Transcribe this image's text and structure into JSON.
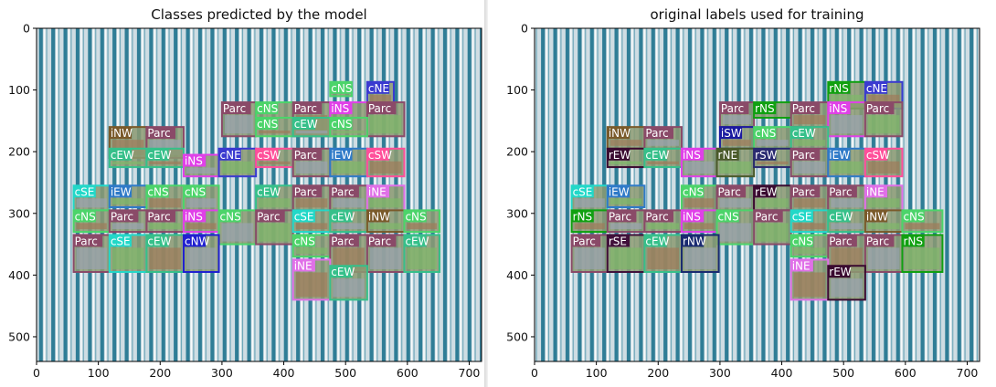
{
  "chart_data": [
    {
      "type": "image-annotation",
      "title": "Classes predicted by the model",
      "xlim": [
        0,
        720
      ],
      "ylim": [
        540,
        0
      ],
      "xticks": [
        0,
        100,
        200,
        300,
        400,
        500,
        600,
        700
      ],
      "yticks": [
        0,
        100,
        200,
        300,
        400,
        500
      ],
      "boxes": [
        {
          "label": "cNS",
          "x0": 475,
          "y0": 87,
          "x1": 510,
          "y1": 110
        },
        {
          "label": "cNE",
          "x0": 535,
          "y0": 87,
          "x1": 578,
          "y1": 130
        },
        {
          "label": "Parc",
          "x0": 300,
          "y0": 120,
          "x1": 355,
          "y1": 175
        },
        {
          "label": "cNS",
          "x0": 355,
          "y0": 120,
          "x1": 415,
          "y1": 145
        },
        {
          "label": "Parc",
          "x0": 415,
          "y0": 120,
          "x1": 475,
          "y1": 175
        },
        {
          "label": "iNS",
          "x0": 475,
          "y0": 120,
          "x1": 535,
          "y1": 145
        },
        {
          "label": "Parc",
          "x0": 535,
          "y0": 120,
          "x1": 595,
          "y1": 175
        },
        {
          "label": "cNS",
          "x0": 355,
          "y0": 145,
          "x1": 415,
          "y1": 175
        },
        {
          "label": "cEW",
          "x0": 415,
          "y0": 145,
          "x1": 475,
          "y1": 175
        },
        {
          "label": "cNS",
          "x0": 475,
          "y0": 145,
          "x1": 535,
          "y1": 175
        },
        {
          "label": "iNW",
          "x0": 118,
          "y0": 160,
          "x1": 178,
          "y1": 210
        },
        {
          "label": "Parc",
          "x0": 178,
          "y0": 160,
          "x1": 238,
          "y1": 210
        },
        {
          "label": "cEW",
          "x0": 118,
          "y0": 195,
          "x1": 178,
          "y1": 225
        },
        {
          "label": "cEW",
          "x0": 178,
          "y0": 195,
          "x1": 238,
          "y1": 225
        },
        {
          "label": "iNS",
          "x0": 238,
          "y0": 205,
          "x1": 295,
          "y1": 240
        },
        {
          "label": "cNE",
          "x0": 295,
          "y0": 195,
          "x1": 355,
          "y1": 240
        },
        {
          "label": "cSW",
          "x0": 355,
          "y0": 195,
          "x1": 415,
          "y1": 225
        },
        {
          "label": "Parc",
          "x0": 415,
          "y0": 195,
          "x1": 475,
          "y1": 240
        },
        {
          "label": "iEW",
          "x0": 475,
          "y0": 195,
          "x1": 535,
          "y1": 240
        },
        {
          "label": "cSW",
          "x0": 535,
          "y0": 195,
          "x1": 595,
          "y1": 240
        },
        {
          "label": "cSE",
          "x0": 60,
          "y0": 255,
          "x1": 118,
          "y1": 295
        },
        {
          "label": "iEW",
          "x0": 118,
          "y0": 255,
          "x1": 178,
          "y1": 290
        },
        {
          "label": "cNS",
          "x0": 178,
          "y0": 255,
          "x1": 238,
          "y1": 295
        },
        {
          "label": "cNS",
          "x0": 238,
          "y0": 255,
          "x1": 295,
          "y1": 295
        },
        {
          "label": "cEW",
          "x0": 355,
          "y0": 255,
          "x1": 415,
          "y1": 295
        },
        {
          "label": "Parc",
          "x0": 415,
          "y0": 255,
          "x1": 475,
          "y1": 295
        },
        {
          "label": "Parc",
          "x0": 475,
          "y0": 255,
          "x1": 535,
          "y1": 295
        },
        {
          "label": "iNE",
          "x0": 535,
          "y0": 255,
          "x1": 595,
          "y1": 295
        },
        {
          "label": "cNS",
          "x0": 60,
          "y0": 295,
          "x1": 118,
          "y1": 330
        },
        {
          "label": "Parc",
          "x0": 118,
          "y0": 295,
          "x1": 178,
          "y1": 330
        },
        {
          "label": "Parc",
          "x0": 178,
          "y0": 295,
          "x1": 238,
          "y1": 330
        },
        {
          "label": "iNS",
          "x0": 238,
          "y0": 295,
          "x1": 295,
          "y1": 330
        },
        {
          "label": "cNS",
          "x0": 295,
          "y0": 295,
          "x1": 355,
          "y1": 350
        },
        {
          "label": "Parc",
          "x0": 355,
          "y0": 295,
          "x1": 415,
          "y1": 350
        },
        {
          "label": "cSE",
          "x0": 415,
          "y0": 295,
          "x1": 475,
          "y1": 330
        },
        {
          "label": "cEW",
          "x0": 475,
          "y0": 295,
          "x1": 535,
          "y1": 330
        },
        {
          "label": "iNW",
          "x0": 535,
          "y0": 295,
          "x1": 595,
          "y1": 330
        },
        {
          "label": "cNS",
          "x0": 595,
          "y0": 295,
          "x1": 652,
          "y1": 330
        },
        {
          "label": "Parc",
          "x0": 60,
          "y0": 335,
          "x1": 118,
          "y1": 395
        },
        {
          "label": "cSE",
          "x0": 118,
          "y0": 335,
          "x1": 178,
          "y1": 395
        },
        {
          "label": "cEW",
          "x0": 178,
          "y0": 335,
          "x1": 238,
          "y1": 395
        },
        {
          "label": "cNW",
          "x0": 238,
          "y0": 335,
          "x1": 295,
          "y1": 395
        },
        {
          "label": "cNS",
          "x0": 415,
          "y0": 335,
          "x1": 475,
          "y1": 370
        },
        {
          "label": "Parc",
          "x0": 475,
          "y0": 335,
          "x1": 535,
          "y1": 395
        },
        {
          "label": "Parc",
          "x0": 535,
          "y0": 335,
          "x1": 595,
          "y1": 395
        },
        {
          "label": "cEW",
          "x0": 595,
          "y0": 335,
          "x1": 652,
          "y1": 395
        },
        {
          "label": "iNE",
          "x0": 415,
          "y0": 375,
          "x1": 475,
          "y1": 440
        },
        {
          "label": "cEW",
          "x0": 475,
          "y0": 385,
          "x1": 535,
          "y1": 440
        }
      ]
    },
    {
      "type": "image-annotation",
      "title": "original labels used for training",
      "xlim": [
        0,
        720
      ],
      "ylim": [
        540,
        0
      ],
      "xticks": [
        0,
        100,
        200,
        300,
        400,
        500,
        600,
        700
      ],
      "yticks": [
        0,
        100,
        200,
        300,
        400,
        500
      ],
      "boxes": [
        {
          "label": "rNS",
          "x0": 475,
          "y0": 87,
          "x1": 535,
          "y1": 130
        },
        {
          "label": "cNE",
          "x0": 535,
          "y0": 87,
          "x1": 595,
          "y1": 130
        },
        {
          "label": "Parc",
          "x0": 300,
          "y0": 120,
          "x1": 355,
          "y1": 160
        },
        {
          "label": "rNS",
          "x0": 355,
          "y0": 120,
          "x1": 415,
          "y1": 145
        },
        {
          "label": "Parc",
          "x0": 415,
          "y0": 120,
          "x1": 475,
          "y1": 160
        },
        {
          "label": "iNS",
          "x0": 475,
          "y0": 120,
          "x1": 535,
          "y1": 175
        },
        {
          "label": "Parc",
          "x0": 535,
          "y0": 120,
          "x1": 595,
          "y1": 175
        },
        {
          "label": "iSW",
          "x0": 300,
          "y0": 160,
          "x1": 355,
          "y1": 195
        },
        {
          "label": "cNS",
          "x0": 355,
          "y0": 160,
          "x1": 415,
          "y1": 195
        },
        {
          "label": "cEW",
          "x0": 415,
          "y0": 160,
          "x1": 475,
          "y1": 195
        },
        {
          "label": "iNW",
          "x0": 118,
          "y0": 160,
          "x1": 178,
          "y1": 195
        },
        {
          "label": "Parc",
          "x0": 178,
          "y0": 160,
          "x1": 238,
          "y1": 195
        },
        {
          "label": "rEW",
          "x0": 118,
          "y0": 195,
          "x1": 178,
          "y1": 225
        },
        {
          "label": "cEW",
          "x0": 178,
          "y0": 195,
          "x1": 238,
          "y1": 225
        },
        {
          "label": "iNS",
          "x0": 238,
          "y0": 195,
          "x1": 295,
          "y1": 240
        },
        {
          "label": "rNE",
          "x0": 295,
          "y0": 195,
          "x1": 355,
          "y1": 240
        },
        {
          "label": "rSW",
          "x0": 355,
          "y0": 195,
          "x1": 415,
          "y1": 225
        },
        {
          "label": "Parc",
          "x0": 415,
          "y0": 195,
          "x1": 475,
          "y1": 240
        },
        {
          "label": "iEW",
          "x0": 475,
          "y0": 195,
          "x1": 535,
          "y1": 240
        },
        {
          "label": "cSW",
          "x0": 535,
          "y0": 195,
          "x1": 595,
          "y1": 240
        },
        {
          "label": "cSE",
          "x0": 60,
          "y0": 255,
          "x1": 118,
          "y1": 295
        },
        {
          "label": "iEW",
          "x0": 118,
          "y0": 255,
          "x1": 178,
          "y1": 290
        },
        {
          "label": "cNS",
          "x0": 238,
          "y0": 255,
          "x1": 295,
          "y1": 295
        },
        {
          "label": "Parc",
          "x0": 295,
          "y0": 255,
          "x1": 355,
          "y1": 295
        },
        {
          "label": "rEW",
          "x0": 355,
          "y0": 255,
          "x1": 415,
          "y1": 295
        },
        {
          "label": "Parc",
          "x0": 415,
          "y0": 255,
          "x1": 475,
          "y1": 295
        },
        {
          "label": "Parc",
          "x0": 475,
          "y0": 255,
          "x1": 535,
          "y1": 295
        },
        {
          "label": "iNE",
          "x0": 535,
          "y0": 255,
          "x1": 595,
          "y1": 295
        },
        {
          "label": "rNS",
          "x0": 60,
          "y0": 295,
          "x1": 118,
          "y1": 330
        },
        {
          "label": "Parc",
          "x0": 118,
          "y0": 295,
          "x1": 178,
          "y1": 330
        },
        {
          "label": "Parc",
          "x0": 178,
          "y0": 295,
          "x1": 238,
          "y1": 330
        },
        {
          "label": "iNS",
          "x0": 238,
          "y0": 295,
          "x1": 295,
          "y1": 330
        },
        {
          "label": "cNS",
          "x0": 295,
          "y0": 295,
          "x1": 355,
          "y1": 350
        },
        {
          "label": "Parc",
          "x0": 355,
          "y0": 295,
          "x1": 415,
          "y1": 350
        },
        {
          "label": "cSE",
          "x0": 415,
          "y0": 295,
          "x1": 475,
          "y1": 330
        },
        {
          "label": "cEW",
          "x0": 475,
          "y0": 295,
          "x1": 535,
          "y1": 330
        },
        {
          "label": "iNW",
          "x0": 535,
          "y0": 295,
          "x1": 595,
          "y1": 330
        },
        {
          "label": "cNS",
          "x0": 595,
          "y0": 295,
          "x1": 660,
          "y1": 330
        },
        {
          "label": "Parc",
          "x0": 60,
          "y0": 335,
          "x1": 118,
          "y1": 395
        },
        {
          "label": "rSE",
          "x0": 118,
          "y0": 335,
          "x1": 178,
          "y1": 395
        },
        {
          "label": "cEW",
          "x0": 178,
          "y0": 335,
          "x1": 238,
          "y1": 395
        },
        {
          "label": "rNW",
          "x0": 238,
          "y0": 335,
          "x1": 298,
          "y1": 395
        },
        {
          "label": "cNS",
          "x0": 415,
          "y0": 335,
          "x1": 475,
          "y1": 370
        },
        {
          "label": "Parc",
          "x0": 475,
          "y0": 335,
          "x1": 535,
          "y1": 395
        },
        {
          "label": "Parc",
          "x0": 535,
          "y0": 335,
          "x1": 595,
          "y1": 395
        },
        {
          "label": "rNS",
          "x0": 595,
          "y0": 335,
          "x1": 660,
          "y1": 395
        },
        {
          "label": "iNE",
          "x0": 415,
          "y0": 375,
          "x1": 475,
          "y1": 440
        },
        {
          "label": "rEW",
          "x0": 475,
          "y0": 385,
          "x1": 535,
          "y1": 440
        }
      ]
    }
  ],
  "label_colors": {
    "Parc": "#8a4a68",
    "cNS": "#4cd46a",
    "cNE": "#3a3ad0",
    "iNS": "#e040e8",
    "cEW": "#36c08a",
    "iNW": "#7a5a2a",
    "cSW": "#ff4f9a",
    "iEW": "#2f7ac8",
    "cSE": "#22d8c8",
    "cNW": "#2020d0",
    "iNE": "#e070e8",
    "rNS": "#10a010",
    "iSW": "#1a1aa0",
    "rEW": "#3a0a30",
    "rNE": "#4a5a2a",
    "rSW": "#2a2a70",
    "rSE": "#40103a",
    "rNW": "#1a2a70"
  },
  "image_colors": {
    "stripe_light": "#cfdde3",
    "stripe_dark": "#2f7d96",
    "tile_bg": "#8c9a72"
  }
}
